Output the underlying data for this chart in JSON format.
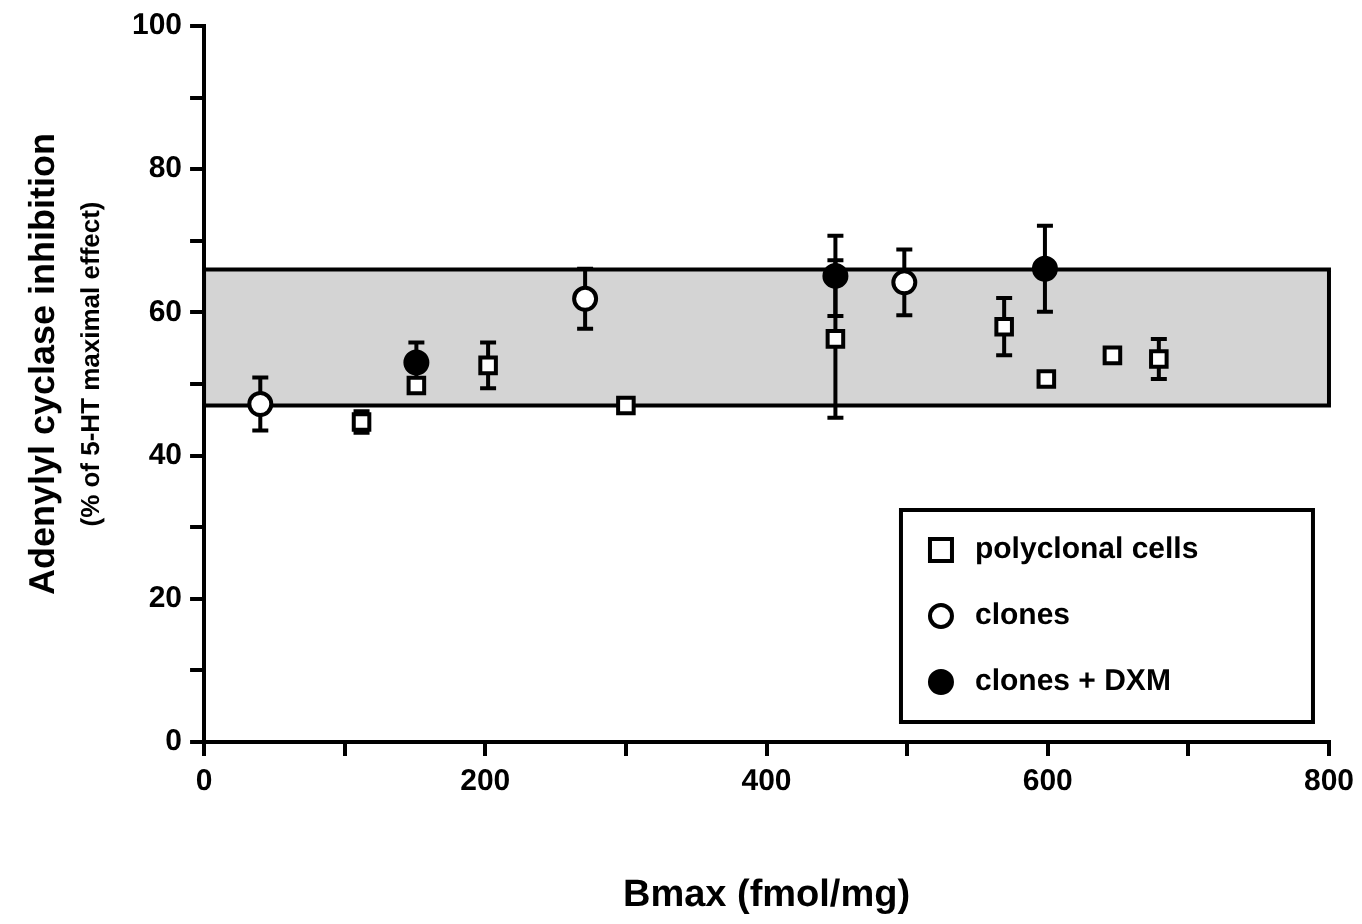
{
  "chart_data": {
    "type": "scatter",
    "xlabel": "Bmax (fmol/mg)",
    "ylabel": "Adenylyl cyclase inhibition\n(% of 5-HT maximal effect)",
    "xlim": [
      0,
      800
    ],
    "xticks": [
      0,
      {
        "value": 100,
        "label": null
      },
      200,
      {
        "value": 300,
        "label": null
      },
      400,
      {
        "value": 500,
        "label": null
      },
      600,
      {
        "value": 700,
        "label": null
      },
      800
    ],
    "ylim": [
      0,
      100
    ],
    "yticks": [
      0,
      {
        "value": 10,
        "label": null
      },
      20,
      {
        "value": 30,
        "label": null
      },
      40,
      {
        "value": 50,
        "label": null
      },
      60,
      {
        "value": 70,
        "label": null
      },
      80,
      {
        "value": 90,
        "label": null
      },
      100
    ],
    "legend": "bottom right",
    "bands": [
      {
        "axis": "y",
        "from": 47,
        "to": 66,
        "color": "#d4d4d4"
      }
    ],
    "series": [
      {
        "name": "polyclonal cells",
        "marker": "square",
        "color": "#ffffff",
        "x": [
          112,
          151,
          202,
          300,
          449,
          569,
          599,
          646,
          679
        ],
        "values": [
          44.7,
          49.8,
          52.6,
          47,
          56.3,
          58,
          50.7,
          54,
          53.5
        ],
        "errors": [
          1.5,
          null,
          3.2,
          null,
          11,
          4,
          null,
          null,
          2.8
        ]
      },
      {
        "name": "clones",
        "marker": "circle",
        "color": "#ffffff",
        "x": [
          40,
          271,
          498
        ],
        "values": [
          47.2,
          61.9,
          64.2
        ],
        "errors": [
          3.7,
          4.2,
          4.6
        ]
      },
      {
        "name": "clones + DXM",
        "marker": "circle",
        "color": "#000000",
        "x": [
          151,
          449,
          598
        ],
        "values": [
          53,
          65.1,
          66.1
        ],
        "errors": [
          2.8,
          5.6,
          6
        ]
      }
    ]
  }
}
